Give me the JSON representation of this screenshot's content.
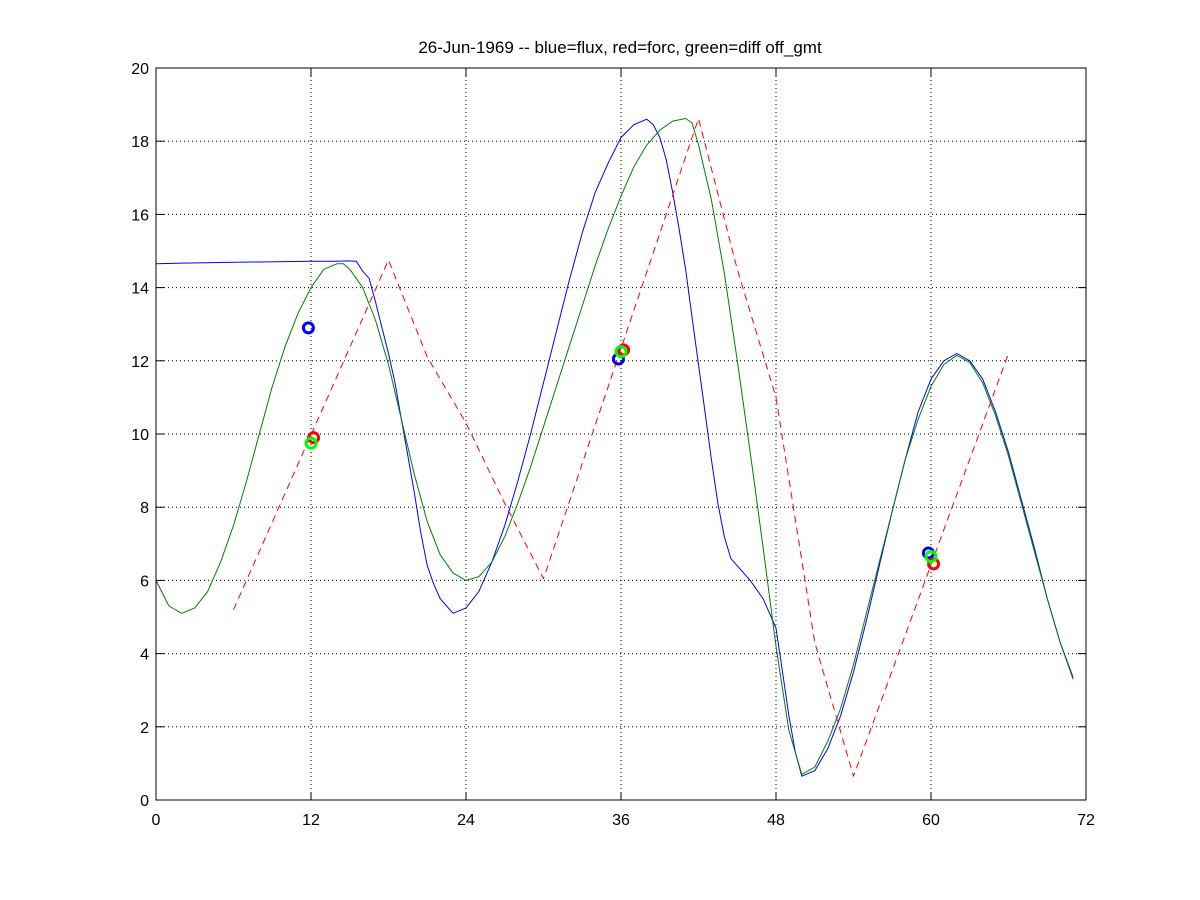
{
  "chart_data": {
    "type": "line",
    "title": "26-Jun-1969 -- blue=flux, red=forc, green=diff off_gmt",
    "xlabel": "",
    "ylabel": "",
    "xlim": [
      0,
      72
    ],
    "ylim": [
      0,
      20
    ],
    "xticks": [
      0,
      12,
      24,
      36,
      48,
      60,
      72
    ],
    "yticks": [
      0,
      2,
      4,
      6,
      8,
      10,
      12,
      14,
      16,
      18,
      20
    ],
    "grid": true,
    "colors": {
      "flux": "#0000ff",
      "forc": "#ff0000",
      "diff": "#008000",
      "diff_marker": "#00ff00",
      "flux_marker": "#0000ff",
      "forc_marker": "#ff0000"
    },
    "series": [
      {
        "key": "flux",
        "style": "solid",
        "x": [
          0,
          2,
          4,
          6,
          8,
          10,
          12,
          13,
          14,
          14.8,
          15.5,
          16,
          16.5,
          17,
          17.5,
          18,
          18.5,
          19,
          19.5,
          20,
          20.5,
          21,
          21.5,
          22,
          22.5,
          23,
          24,
          25,
          26,
          27,
          28,
          29,
          30,
          31,
          32,
          33,
          34,
          35,
          36,
          37,
          38,
          38.5,
          39,
          39.5,
          40,
          40.5,
          41,
          41.5,
          42,
          42.5,
          43,
          43.5,
          44,
          44.5,
          45,
          46,
          47,
          48,
          48.5,
          49,
          49.5,
          50,
          51,
          52,
          53,
          54,
          55,
          56,
          57,
          58,
          59,
          60,
          61,
          62,
          63,
          64,
          65,
          66,
          67,
          68,
          69,
          70,
          71
        ],
        "y": [
          14.65,
          14.67,
          14.68,
          14.69,
          14.7,
          14.71,
          14.72,
          14.72,
          14.72,
          14.73,
          14.72,
          14.45,
          14.25,
          13.6,
          12.9,
          12.2,
          11.4,
          10.4,
          9.4,
          8.4,
          7.3,
          6.4,
          5.9,
          5.5,
          5.3,
          5.1,
          5.25,
          5.7,
          6.5,
          7.5,
          8.7,
          10.0,
          11.4,
          12.8,
          14.2,
          15.5,
          16.6,
          17.4,
          18.1,
          18.45,
          18.6,
          18.45,
          18.1,
          17.5,
          16.6,
          15.6,
          14.5,
          13.2,
          11.9,
          10.6,
          9.3,
          8.1,
          7.2,
          6.6,
          6.4,
          6.0,
          5.5,
          4.7,
          3.5,
          2.3,
          1.3,
          0.65,
          0.8,
          1.4,
          2.3,
          3.5,
          4.9,
          6.4,
          7.9,
          9.3,
          10.6,
          11.5,
          12.0,
          12.2,
          12.0,
          11.5,
          10.6,
          9.5,
          8.2,
          6.9,
          5.5,
          4.3,
          3.35
        ]
      },
      {
        "key": "diff",
        "style": "solid",
        "x": [
          0,
          1,
          2,
          3,
          4,
          5,
          6,
          7,
          8,
          9,
          10,
          11,
          12,
          13,
          14,
          14.5,
          15,
          16,
          17,
          18,
          19,
          20,
          21,
          22,
          23,
          24,
          25,
          26,
          27,
          28,
          29,
          30,
          31,
          32,
          33,
          34,
          35,
          36,
          37,
          38,
          39,
          40,
          41,
          41.5,
          42,
          43,
          44,
          45,
          46,
          47,
          48,
          49,
          50,
          51,
          52,
          53,
          54,
          55,
          56,
          57,
          58,
          59,
          60,
          61,
          62,
          63,
          64,
          65,
          66,
          67,
          68,
          69,
          70,
          71
        ],
        "y": [
          6.0,
          5.3,
          5.1,
          5.25,
          5.7,
          6.5,
          7.5,
          8.7,
          10.0,
          11.3,
          12.4,
          13.3,
          14.0,
          14.5,
          14.65,
          14.65,
          14.5,
          14.0,
          13.1,
          11.9,
          10.4,
          8.9,
          7.6,
          6.7,
          6.2,
          6.0,
          6.1,
          6.5,
          7.2,
          8.1,
          9.1,
          10.2,
          11.3,
          12.4,
          13.5,
          14.6,
          15.6,
          16.5,
          17.3,
          17.9,
          18.3,
          18.55,
          18.62,
          18.5,
          17.9,
          16.4,
          14.4,
          12.0,
          9.5,
          6.9,
          4.2,
          1.9,
          0.7,
          0.9,
          1.6,
          2.5,
          3.7,
          5.1,
          6.5,
          7.9,
          9.3,
          10.4,
          11.3,
          11.9,
          12.15,
          11.95,
          11.4,
          10.5,
          9.4,
          8.1,
          6.8,
          5.5,
          4.3,
          3.3
        ]
      },
      {
        "key": "forc",
        "style": "dashed",
        "x": [
          6,
          18,
          21,
          24,
          27,
          30,
          42,
          45,
          48,
          51,
          54,
          66
        ],
        "y": [
          5.2,
          14.75,
          12.1,
          10.3,
          8.1,
          6.05,
          18.62,
          14.5,
          11.0,
          4.3,
          0.65,
          12.2
        ]
      }
    ],
    "markers": [
      {
        "key": "flux",
        "x": 11.8,
        "y": 12.9
      },
      {
        "key": "forc",
        "x": 12.2,
        "y": 9.9
      },
      {
        "key": "diff",
        "x": 12.0,
        "y": 9.75
      },
      {
        "key": "flux",
        "x": 35.8,
        "y": 12.05
      },
      {
        "key": "forc",
        "x": 36.2,
        "y": 12.3
      },
      {
        "key": "diff",
        "x": 36.0,
        "y": 12.25
      },
      {
        "key": "flux",
        "x": 59.8,
        "y": 6.75
      },
      {
        "key": "forc",
        "x": 60.2,
        "y": 6.45
      },
      {
        "key": "diff",
        "x": 60.0,
        "y": 6.65
      }
    ]
  }
}
